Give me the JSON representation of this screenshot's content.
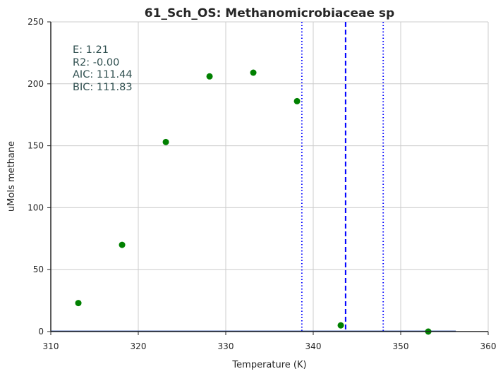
{
  "chart_data": {
    "type": "scatter",
    "title": "61_Sch_OS: Methanomicrobiaceae sp",
    "xlabel": "Temperature (K)",
    "ylabel": "uMols methane",
    "xlim": [
      310,
      360
    ],
    "ylim": [
      0,
      250
    ],
    "xticks": [
      "310",
      "320",
      "330",
      "340",
      "350",
      "360"
    ],
    "yticks": [
      "0",
      "50",
      "100",
      "150",
      "200",
      "250"
    ],
    "grid": true,
    "points": {
      "x": [
        313.15,
        318.15,
        323.15,
        328.15,
        333.15,
        338.15,
        343.15,
        353.15
      ],
      "y": [
        23,
        70,
        153,
        206,
        209,
        186,
        5,
        0
      ],
      "color": "#008000"
    },
    "fit_line": {
      "x": [
        310,
        356.3
      ],
      "y": [
        0.2,
        0.2
      ],
      "color": "#2c4fa3"
    },
    "vlines": [
      {
        "x": 343.7,
        "style": "dashed",
        "color": "#0000ff"
      },
      {
        "x": 338.7,
        "style": "dotted",
        "color": "#0000ff"
      },
      {
        "x": 348.0,
        "style": "dotted",
        "color": "#0000ff"
      }
    ],
    "annotations": [
      "E:  1.21",
      "R2:  -0.00",
      "AIC: 111.44",
      "BIC: 111.83"
    ]
  }
}
